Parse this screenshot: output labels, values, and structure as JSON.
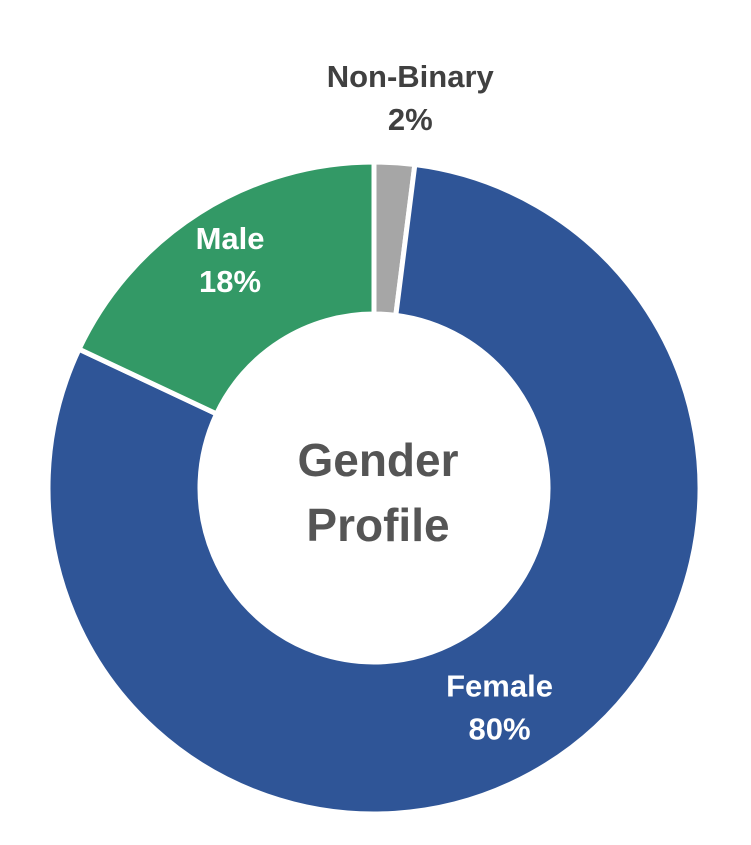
{
  "chart_data": {
    "type": "pie",
    "variant": "donut",
    "center_title_lines": [
      "Gender",
      "Profile"
    ],
    "slices": [
      {
        "name": "Non-Binary",
        "value": 2,
        "value_label": "2%",
        "color": "#a6a6a6",
        "label_color": "#404040",
        "label_position": "outside"
      },
      {
        "name": "Female",
        "value": 80,
        "value_label": "80%",
        "color": "#2f5597",
        "label_color": "#ffffff",
        "label_position": "inside"
      },
      {
        "name": "Male",
        "value": 18,
        "value_label": "18%",
        "color": "#339966",
        "label_color": "#ffffff",
        "label_position": "inside"
      }
    ],
    "start_angle": "top",
    "direction": "clockwise",
    "legend": "none"
  }
}
